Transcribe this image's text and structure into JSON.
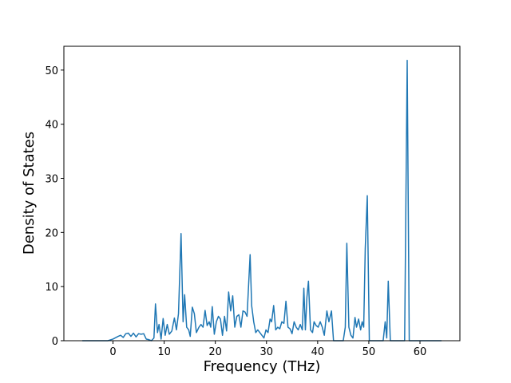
{
  "chart_data": {
    "type": "line",
    "x_label": "Frequency (THz)",
    "y_label": "Density of States",
    "color": "#1f77b4",
    "x": [
      -6,
      -1,
      0,
      1,
      1.5,
      2,
      2.5,
      3,
      3.5,
      4,
      4.5,
      5,
      5.5,
      6,
      6.5,
      7,
      7.5,
      8,
      8.3,
      8.7,
      9,
      9.4,
      9.8,
      10.2,
      10.6,
      11,
      11.5,
      12,
      12.4,
      12.8,
      13.3,
      13.7,
      14,
      14.4,
      14.8,
      15.1,
      15.5,
      15.9,
      16.3,
      16.8,
      17.2,
      17.6,
      18,
      18.4,
      18.8,
      19.1,
      19.4,
      19.8,
      20.2,
      20.6,
      21,
      21.4,
      21.8,
      22.2,
      22.6,
      23,
      23.4,
      23.8,
      24.2,
      24.6,
      25,
      25.4,
      25.8,
      26.2,
      26.8,
      27.1,
      27.5,
      27.9,
      28.3,
      28.7,
      29.1,
      29.5,
      29.9,
      30.3,
      30.7,
      31,
      31.4,
      31.8,
      32.2,
      32.6,
      33,
      33.4,
      33.8,
      34.2,
      34.6,
      35,
      35.4,
      35.8,
      36.2,
      36.6,
      37,
      37.3,
      37.6,
      37.9,
      38.2,
      38.6,
      39,
      39.3,
      39.7,
      40.1,
      40.5,
      40.9,
      41.3,
      41.8,
      42.2,
      42.7,
      43.1,
      45,
      45.4,
      45.7,
      46.1,
      46.5,
      46.9,
      47.3,
      47.6,
      48,
      48.4,
      48.7,
      49,
      49.3,
      49.7,
      50.1,
      52.8,
      53.2,
      53.5,
      53.8,
      54.2,
      57,
      57.5,
      57.9,
      64.2
    ],
    "values": [
      0,
      0,
      0.3,
      0.8,
      1.0,
      0.6,
      1.3,
      1.4,
      0.8,
      1.4,
      0.7,
      1.3,
      1.2,
      1.3,
      0.3,
      0.2,
      0,
      0.5,
      6.8,
      1.5,
      3,
      0.3,
      4.1,
      1,
      3,
      1.2,
      1.8,
      4.2,
      2,
      5,
      19.8,
      3.5,
      8.5,
      2.5,
      2,
      0.8,
      6.2,
      5,
      1.5,
      2.5,
      3,
      2.5,
      5.6,
      2.8,
      3.5,
      2.5,
      6.3,
      1.2,
      3.5,
      4.5,
      4,
      1,
      4.5,
      1.8,
      9,
      5.5,
      8.3,
      2.5,
      4.5,
      4.8,
      2.5,
      5.5,
      5.3,
      4.5,
      15.9,
      6.5,
      3.5,
      1.5,
      2,
      1.5,
      1,
      0.5,
      2,
      1.5,
      4,
      3.5,
      6.5,
      2,
      2.5,
      2.2,
      3.5,
      3.2,
      7.3,
      2.5,
      2.2,
      1.3,
      3.5,
      2.5,
      2,
      3,
      2,
      9.7,
      2,
      8,
      11,
      2,
      1.5,
      3.5,
      2.8,
      2.5,
      3.5,
      2.5,
      1,
      5.5,
      3.5,
      5.5,
      0,
      0,
      2.5,
      18,
      2.5,
      1,
      0.5,
      4.3,
      2.5,
      4,
      2,
      3.5,
      2.5,
      17,
      26.8,
      0,
      0,
      3.5,
      0.5,
      11,
      0,
      0,
      51.8,
      0,
      0
    ],
    "xlim": [
      -9.6,
      67.8
    ],
    "ylim": [
      0,
      54.4
    ],
    "xticks": [
      0,
      10,
      20,
      30,
      40,
      50,
      60
    ],
    "yticks": [
      0,
      10,
      20,
      30,
      40,
      50
    ]
  }
}
